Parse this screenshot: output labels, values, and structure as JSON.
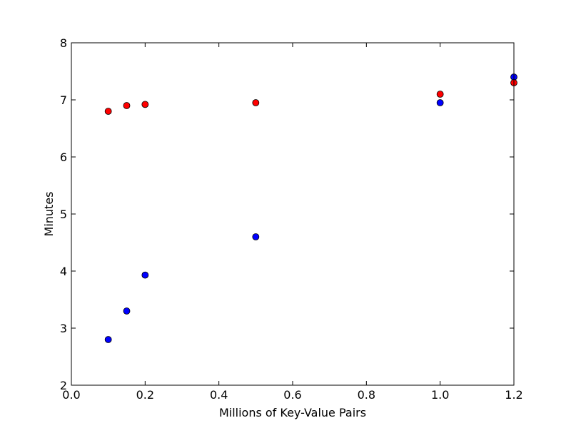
{
  "chart_data": {
    "type": "scatter",
    "xlabel": "Millions of Key-Value Pairs",
    "ylabel": "Minutes",
    "xlim": [
      0.0,
      1.2
    ],
    "ylim": [
      2,
      8
    ],
    "x_ticks": [
      "0.0",
      "0.2",
      "0.4",
      "0.6",
      "0.8",
      "1.0",
      "1.2"
    ],
    "y_ticks": [
      "2",
      "3",
      "4",
      "5",
      "6",
      "7",
      "8"
    ],
    "grid": false,
    "series": [
      {
        "color": "#0000ff",
        "points": [
          {
            "x": 0.1,
            "y": 2.8
          },
          {
            "x": 0.15,
            "y": 3.3
          },
          {
            "x": 0.2,
            "y": 3.93
          },
          {
            "x": 0.5,
            "y": 4.6
          },
          {
            "x": 1.0,
            "y": 6.95
          },
          {
            "x": 1.2,
            "y": 7.4
          }
        ]
      },
      {
        "color": "#ff0000",
        "points": [
          {
            "x": 0.1,
            "y": 6.8
          },
          {
            "x": 0.15,
            "y": 6.9
          },
          {
            "x": 0.2,
            "y": 6.92
          },
          {
            "x": 0.5,
            "y": 6.95
          },
          {
            "x": 1.0,
            "y": 7.1
          },
          {
            "x": 1.2,
            "y": 7.3
          }
        ]
      }
    ]
  }
}
